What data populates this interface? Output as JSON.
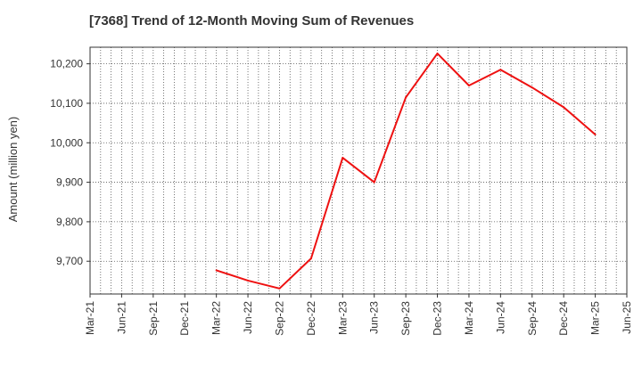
{
  "chart_data": {
    "type": "line",
    "title": "[7368]  Trend of 12-Month Moving Sum of Revenues",
    "xlabel": "",
    "ylabel": "Amount (million yen)",
    "categories": [
      "Mar-21",
      "Jun-21",
      "Sep-21",
      "Dec-21",
      "Mar-22",
      "Jun-22",
      "Sep-22",
      "Dec-22",
      "Mar-23",
      "Jun-23",
      "Sep-23",
      "Dec-23",
      "Mar-24",
      "Jun-24",
      "Sep-24",
      "Dec-24",
      "Mar-25",
      "Jun-25"
    ],
    "series": [
      {
        "name": "",
        "color": "#ee1111",
        "values": [
          null,
          null,
          null,
          null,
          9677,
          9651,
          9631,
          9707,
          9962,
          9900,
          10115,
          10226,
          10145,
          10185,
          10140,
          10090,
          10021,
          null
        ]
      }
    ],
    "yticks": [
      9700,
      9800,
      9900,
      10000,
      10100,
      10200
    ],
    "ytick_labels": [
      "9,700",
      "9,800",
      "9,900",
      "10,000",
      "10,100",
      "10,200"
    ],
    "ylim": [
      9617,
      10242
    ],
    "grid": true,
    "minor_x_grid_per_quarter": 3
  }
}
